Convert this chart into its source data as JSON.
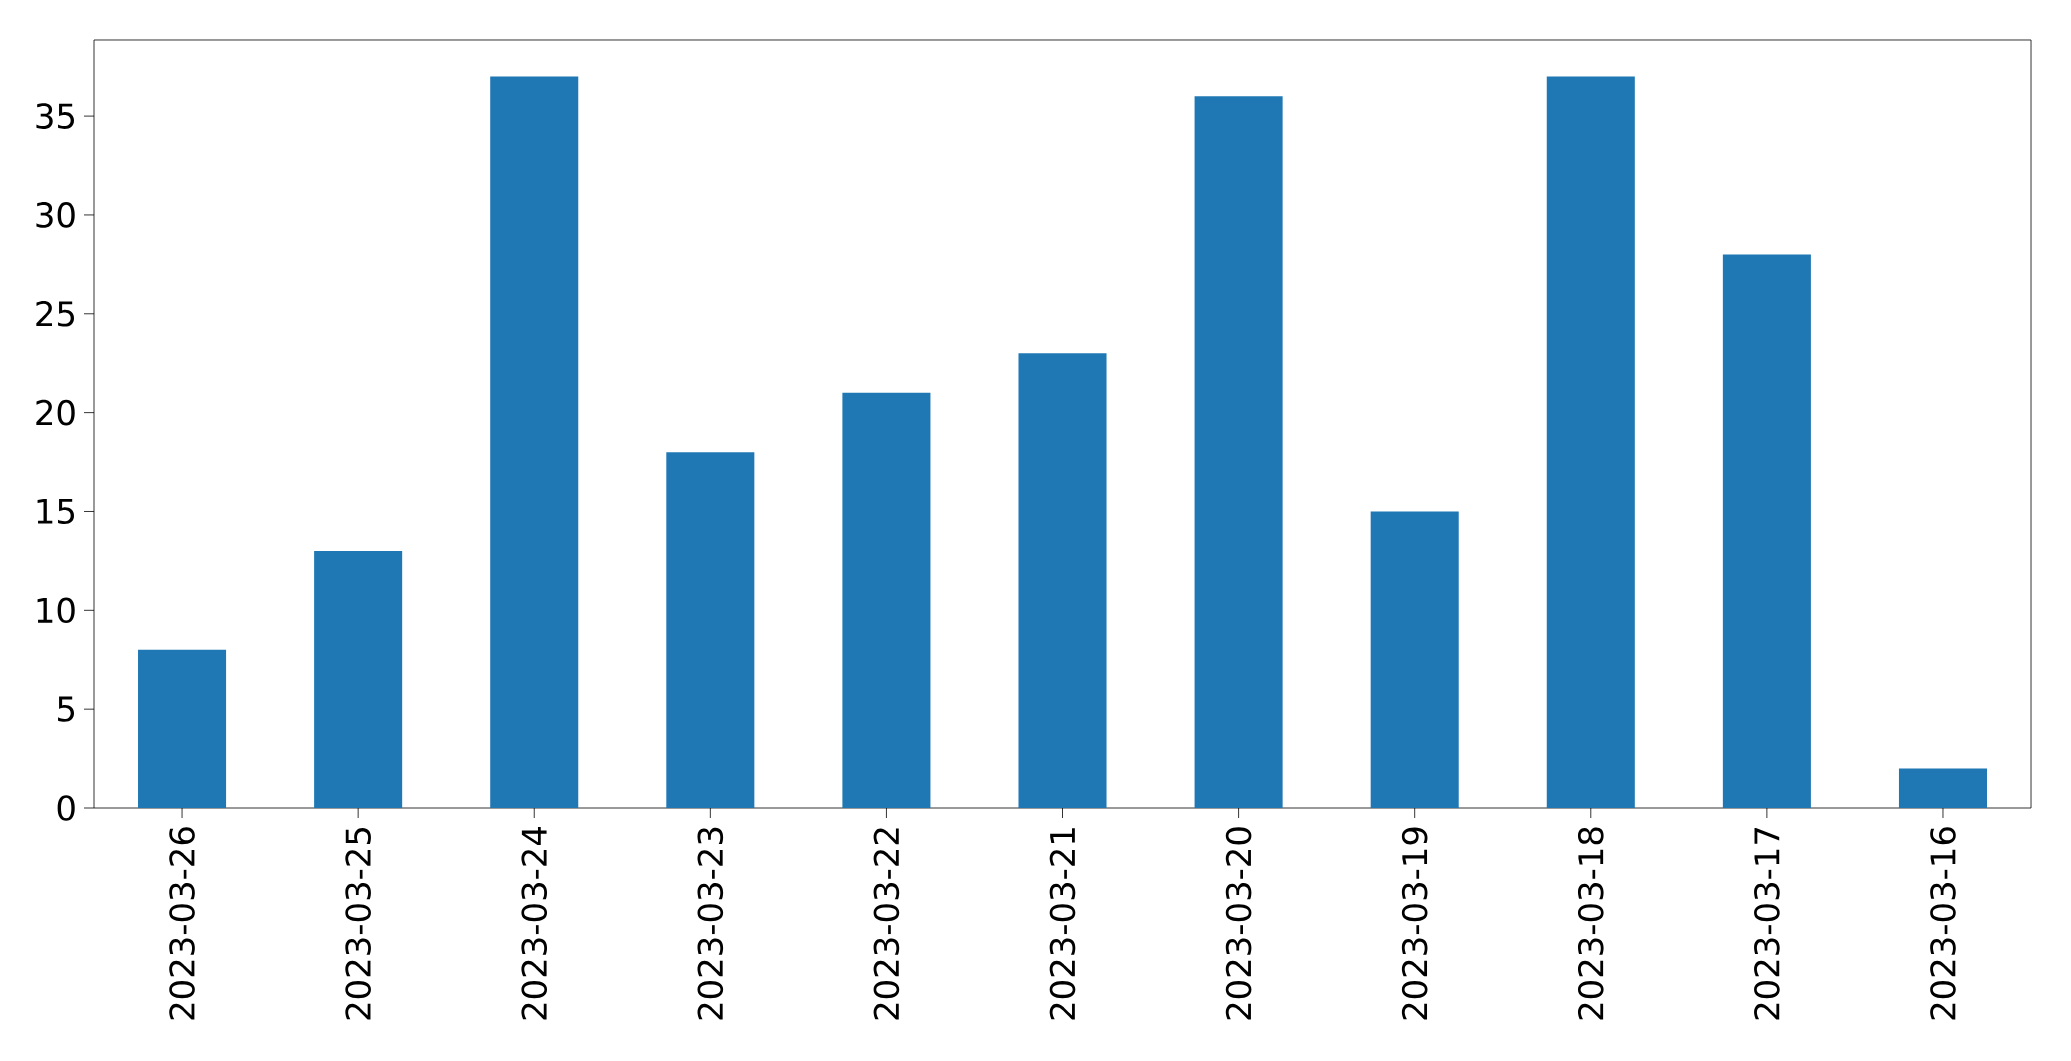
{
  "chart_data": {
    "type": "bar",
    "categories": [
      "2023-03-26",
      "2023-03-25",
      "2023-03-24",
      "2023-03-23",
      "2023-03-22",
      "2023-03-21",
      "2023-03-20",
      "2023-03-19",
      "2023-03-18",
      "2023-03-17",
      "2023-03-16"
    ],
    "values": [
      8,
      13,
      37,
      18,
      21,
      23,
      36,
      15,
      37,
      28,
      2
    ],
    "color": "#1f77b4",
    "ylim": [
      0,
      38.85
    ],
    "yticks": [
      0,
      5,
      10,
      15,
      20,
      25,
      30,
      35
    ]
  }
}
